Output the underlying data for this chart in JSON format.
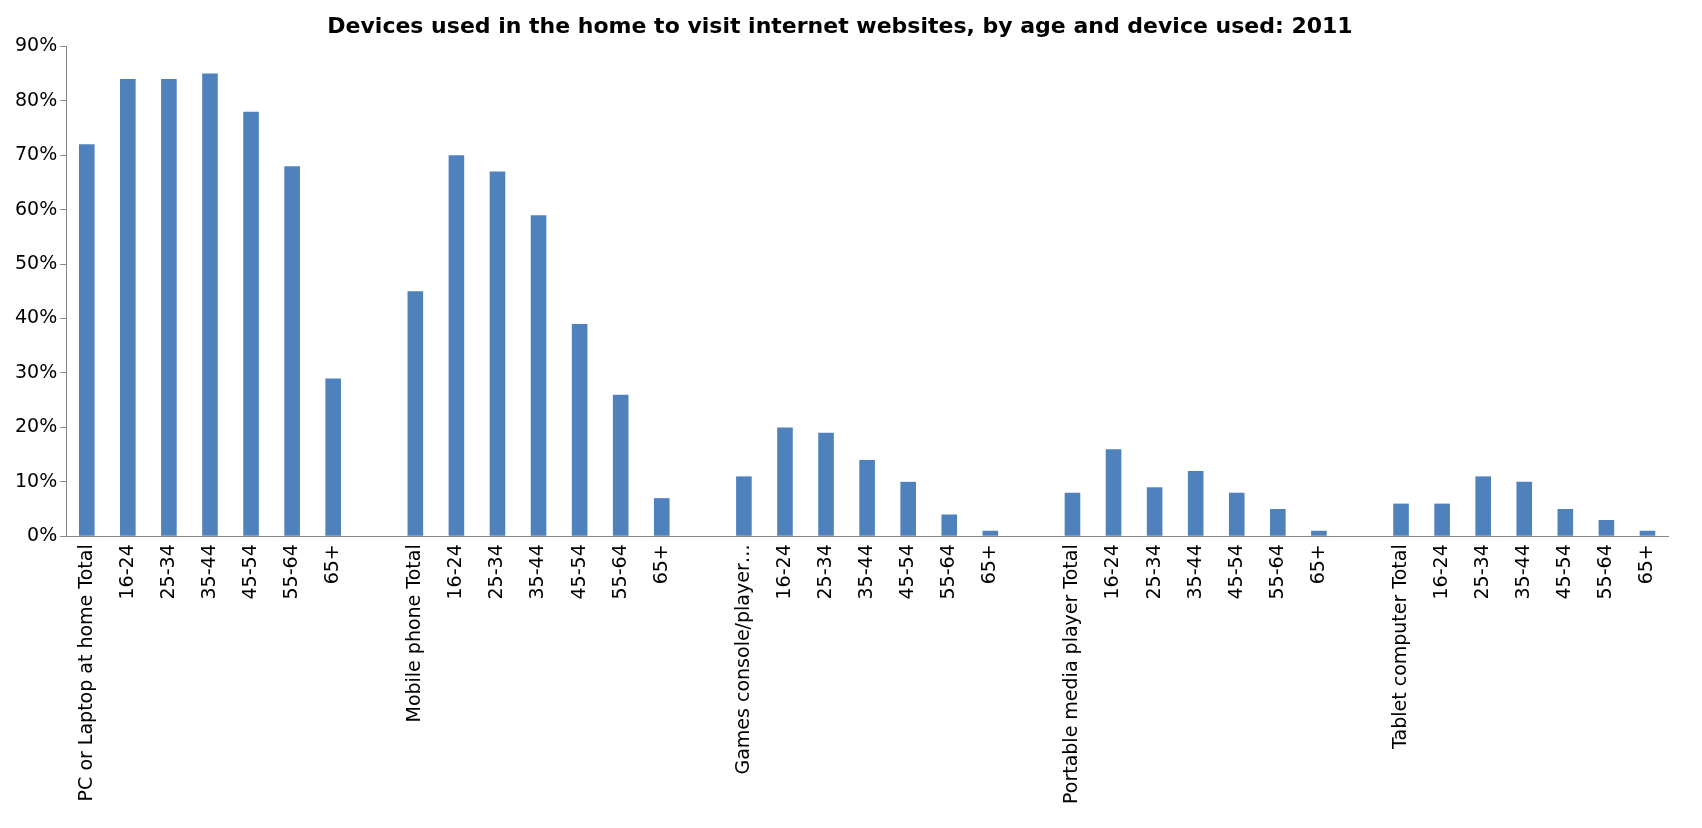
{
  "chart_data": {
    "type": "bar",
    "title": "Devices used in the home to visit internet websites, by age and device used: 2011",
    "categories": [
      "PC or Laptop at home Total",
      "16-24",
      "25-34",
      "35-44",
      "45-54",
      "55-64",
      "65+",
      null,
      "Mobile phone Total",
      "16-24",
      "25-34",
      "35-44",
      "45-54",
      "55-64",
      "65+",
      null,
      "Games console/player…",
      "16-24",
      "25-34",
      "35-44",
      "45-54",
      "55-64",
      "65+",
      null,
      "Portable media player Total",
      "16-24",
      "25-34",
      "35-44",
      "45-54",
      "55-64",
      "65+",
      null,
      "Tablet computer Total",
      "16-24",
      "25-34",
      "35-44",
      "45-54",
      "55-64",
      "65+"
    ],
    "values": [
      72,
      84,
      84,
      85,
      78,
      68,
      29,
      null,
      45,
      70,
      67,
      59,
      39,
      26,
      7,
      null,
      11,
      20,
      19,
      14,
      10,
      4,
      1,
      null,
      8,
      16,
      9,
      12,
      8,
      5,
      1,
      null,
      6,
      6,
      11,
      10,
      5,
      3,
      1
    ],
    "color": "#4f81bd",
    "ylim": [
      0,
      90
    ],
    "yticks": [
      {
        "value": 0,
        "label": "0%"
      },
      {
        "value": 10,
        "label": "10%"
      },
      {
        "value": 20,
        "label": "20%"
      },
      {
        "value": 30,
        "label": "30%"
      },
      {
        "value": 40,
        "label": "40%"
      },
      {
        "value": 50,
        "label": "50%"
      },
      {
        "value": 60,
        "label": "60%"
      },
      {
        "value": 70,
        "label": "70%"
      },
      {
        "value": 80,
        "label": "80%"
      },
      {
        "value": 90,
        "label": "90%"
      }
    ],
    "grid": false,
    "legend": false
  }
}
